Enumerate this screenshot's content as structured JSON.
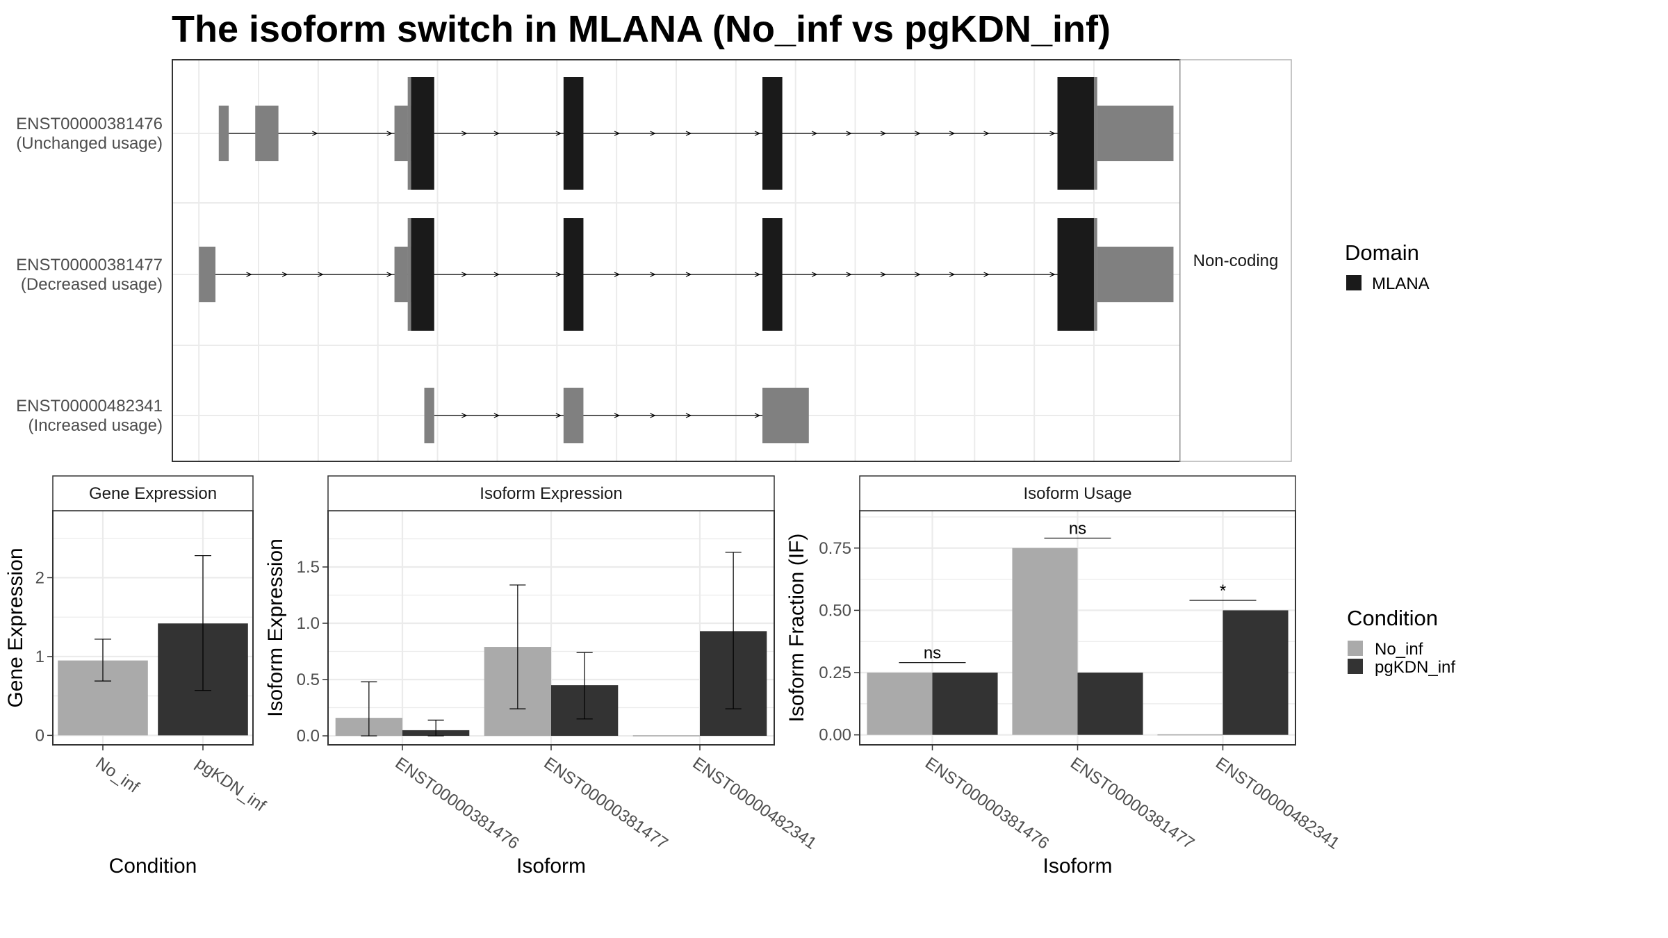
{
  "title": "The isoform switch in MLANA (No_inf vs pgKDN_inf)",
  "colors": {
    "domain": "#1a1a1a",
    "noncoding": "#808080",
    "no_inf": "#aaaaaa",
    "pgkdn_inf": "#333333",
    "grid": "#ebebeb",
    "panel_border": "#333333",
    "strip_bg": "#ffffff"
  },
  "structure": {
    "strip_label": "Non-coding",
    "isoforms": [
      {
        "id": "ENST00000381476",
        "usage": "(Unchanged usage)",
        "noncoding_blocks": [
          [
            10.3,
            10.45
          ],
          [
            10.85,
            11.2
          ],
          [
            12.95,
            13.15
          ],
          [
            13.15,
            13.2
          ],
          [
            23.5,
            23.55
          ],
          [
            23.55,
            24.7
          ]
        ],
        "domain_blocks": [
          [
            13.2,
            13.55
          ],
          [
            15.5,
            15.8
          ],
          [
            18.5,
            18.8
          ],
          [
            22.95,
            23.5
          ]
        ],
        "intron_range": [
          10.45,
          22.95
        ]
      },
      {
        "id": "ENST00000381477",
        "usage": "(Decreased usage)",
        "noncoding_blocks": [
          [
            10.0,
            10.25
          ],
          [
            12.95,
            13.15
          ],
          [
            13.15,
            13.2
          ],
          [
            23.5,
            23.55
          ],
          [
            23.55,
            24.7
          ]
        ],
        "domain_blocks": [
          [
            13.2,
            13.55
          ],
          [
            15.5,
            15.8
          ],
          [
            18.5,
            18.8
          ],
          [
            22.95,
            23.5
          ]
        ],
        "intron_range": [
          10.25,
          22.95
        ]
      },
      {
        "id": "ENST00000482341",
        "usage": "(Increased usage)",
        "noncoding_blocks": [
          [
            13.4,
            13.55
          ],
          [
            15.5,
            15.8
          ],
          [
            18.5,
            19.2
          ]
        ],
        "domain_blocks": [],
        "intron_range": [
          13.55,
          18.5
        ]
      }
    ]
  },
  "legends": {
    "domain": {
      "title": "Domain",
      "items": [
        "MLANA"
      ]
    },
    "condition": {
      "title": "Condition",
      "items": [
        "No_inf",
        "pgKDN_inf"
      ]
    }
  },
  "chart_data": [
    {
      "type": "bar",
      "strip": "Gene Expression",
      "xlabel": "Condition",
      "ylabel": "Gene Expression",
      "categories": [
        "No_inf",
        "pgKDN_inf"
      ],
      "values": [
        0.95,
        1.42
      ],
      "error_low": [
        0.69,
        0.57
      ],
      "error_high": [
        1.22,
        2.28
      ],
      "ylim": [
        -0.12,
        2.85
      ],
      "yticks": [
        0,
        1,
        2
      ]
    },
    {
      "type": "bar",
      "strip": "Isoform Expression",
      "xlabel": "Isoform",
      "ylabel": "Isoform Expression",
      "categories": [
        "ENST00000381476",
        "ENST00000381477",
        "ENST00000482341"
      ],
      "series": [
        {
          "name": "No_inf",
          "values": [
            0.16,
            0.79,
            0.0
          ],
          "error_low": [
            0.0,
            0.24,
            0.0
          ],
          "error_high": [
            0.48,
            1.34,
            0.0
          ]
        },
        {
          "name": "pgKDN_inf",
          "values": [
            0.05,
            0.45,
            0.93
          ],
          "error_low": [
            0.0,
            0.15,
            0.24
          ],
          "error_high": [
            0.14,
            0.74,
            1.63
          ]
        }
      ],
      "ylim": [
        -0.08,
        2.0
      ],
      "yticks": [
        0.0,
        0.5,
        1.0,
        1.5
      ]
    },
    {
      "type": "bar",
      "strip": "Isoform Usage",
      "xlabel": "Isoform",
      "ylabel": "Isoform Fraction (IF)",
      "categories": [
        "ENST00000381476",
        "ENST00000381477",
        "ENST00000482341"
      ],
      "series": [
        {
          "name": "No_inf",
          "values": [
            0.25,
            0.75,
            0.0
          ]
        },
        {
          "name": "pgKDN_inf",
          "values": [
            0.25,
            0.25,
            0.5
          ]
        }
      ],
      "significance": [
        "ns",
        "ns",
        "*"
      ],
      "significance_y": [
        0.29,
        0.79,
        0.54
      ],
      "ylim": [
        -0.04,
        0.9
      ],
      "yticks": [
        0.0,
        0.25,
        0.5,
        0.75
      ]
    }
  ]
}
